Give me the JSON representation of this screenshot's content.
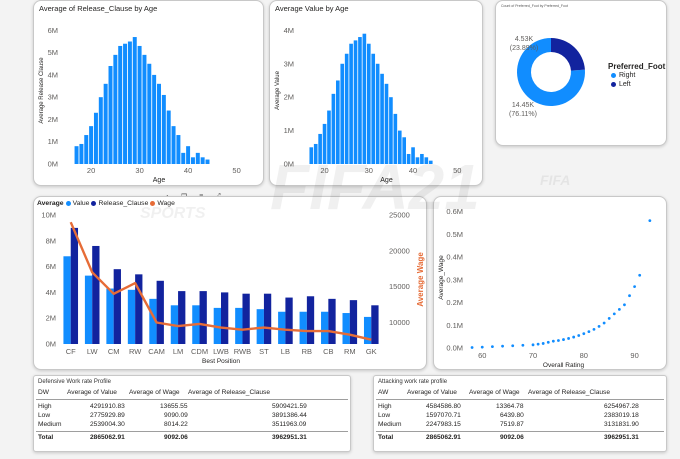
{
  "histogram_release": {
    "title": "Average of Release_Clause by Age",
    "ylabel": "Average Release Clause",
    "xlabel": "Age",
    "yticks": [
      "0M",
      "1M",
      "2M",
      "3M",
      "4M",
      "5M",
      "6M"
    ],
    "xticks": [
      "20",
      "30",
      "40",
      "50"
    ]
  },
  "histogram_value": {
    "title": "Average Value by Age",
    "ylabel": "Average Value",
    "xlabel": "Age",
    "yticks": [
      "0M",
      "1M",
      "2M",
      "3M",
      "4M"
    ],
    "xticks": [
      "20",
      "30",
      "40",
      "50"
    ]
  },
  "donut": {
    "title": "Count of Preferred_Foot by Preferred_Foot",
    "legend_title": "Preferred_Foot",
    "items": [
      {
        "label": "Right",
        "value": "14.45K",
        "pct": "(76.11%)",
        "share": 76.11,
        "color": "#118dff"
      },
      {
        "label": "Left",
        "value": "4.53K",
        "pct": "(23.89%)",
        "share": 23.89,
        "color": "#12239e"
      }
    ]
  },
  "combo": {
    "legend_prefix": "Average",
    "legend": [
      {
        "label": "Value",
        "color": "#118dff"
      },
      {
        "label": "Release_Clause",
        "color": "#12239e"
      },
      {
        "label": "Wage",
        "color": "#e66c37"
      }
    ],
    "xlabel": "Best Position",
    "y2label": "Average Wage",
    "yticks": [
      "0M",
      "2M",
      "4M",
      "6M",
      "8M",
      "10M"
    ],
    "y2ticks": [
      "10000",
      "15000",
      "20000",
      "25000"
    ]
  },
  "scatter": {
    "ylabel": "Average_Wage",
    "xlabel": "Overall Rating",
    "yticks": [
      "0.0M",
      "0.1M",
      "0.2M",
      "0.3M",
      "0.4M",
      "0.5M",
      "0.6M"
    ],
    "xticks": [
      "60",
      "70",
      "80",
      "90"
    ]
  },
  "chart_data": [
    {
      "type": "bar",
      "title": "Average of Release_Clause by Age",
      "xlabel": "Age",
      "ylabel": "Average Release Clause",
      "x": [
        17,
        18,
        19,
        20,
        21,
        22,
        23,
        24,
        25,
        26,
        27,
        28,
        29,
        30,
        31,
        32,
        33,
        34,
        35,
        36,
        37,
        38,
        39,
        40,
        41,
        42,
        43,
        44
      ],
      "values": [
        0.8,
        0.9,
        1.3,
        1.7,
        2.3,
        3.0,
        3.6,
        4.4,
        4.9,
        5.3,
        5.4,
        5.5,
        5.7,
        5.3,
        4.9,
        4.5,
        4.0,
        3.6,
        3.1,
        2.4,
        1.7,
        1.3,
        0.5,
        0.8,
        0.3,
        0.5,
        0.3,
        0.2
      ],
      "xlim": [
        14,
        54
      ],
      "ylim": [
        0,
        6.6
      ]
    },
    {
      "type": "bar",
      "title": "Average Value by Age",
      "xlabel": "Age",
      "ylabel": "Average Value",
      "x": [
        17,
        18,
        19,
        20,
        21,
        22,
        23,
        24,
        25,
        26,
        27,
        28,
        29,
        30,
        31,
        32,
        33,
        34,
        35,
        36,
        37,
        38,
        39,
        40,
        41,
        42,
        43,
        44
      ],
      "values": [
        0.5,
        0.6,
        0.9,
        1.2,
        1.6,
        2.1,
        2.5,
        3.0,
        3.3,
        3.6,
        3.7,
        3.8,
        3.9,
        3.6,
        3.3,
        3.0,
        2.7,
        2.4,
        2.0,
        1.5,
        1.0,
        0.8,
        0.3,
        0.5,
        0.2,
        0.3,
        0.2,
        0.1
      ],
      "xlim": [
        14,
        54
      ],
      "ylim": [
        0,
        4.4
      ]
    },
    {
      "type": "pie",
      "title": "Count of Preferred_Foot by Preferred_Foot",
      "categories": [
        "Right",
        "Left"
      ],
      "values": [
        14450,
        4530
      ]
    },
    {
      "type": "bar",
      "categories": [
        "CF",
        "LW",
        "CM",
        "RW",
        "CAM",
        "LM",
        "CDM",
        "LWB",
        "RWB",
        "ST",
        "LB",
        "RB",
        "CB",
        "RM",
        "GK"
      ],
      "series": [
        {
          "name": "Value",
          "values": [
            6.8,
            5.3,
            4.3,
            4.2,
            3.5,
            3.0,
            3.0,
            2.8,
            2.8,
            2.7,
            2.5,
            2.5,
            2.5,
            2.4,
            2.1
          ]
        },
        {
          "name": "Release_Clause",
          "values": [
            9.0,
            7.6,
            5.8,
            5.4,
            4.9,
            4.1,
            4.1,
            4.0,
            3.9,
            3.9,
            3.6,
            3.7,
            3.5,
            3.4,
            3.0
          ]
        },
        {
          "name": "Wage",
          "axis": "secondary",
          "values": [
            24000,
            17000,
            14000,
            15500,
            10000,
            9500,
            9800,
            9300,
            9000,
            9300,
            9000,
            8800,
            8800,
            8300,
            7600
          ]
        }
      ],
      "xlabel": "Best Position",
      "ylabel": "",
      "y2label": "Average Wage",
      "ylim": [
        0,
        10
      ],
      "y2lim": [
        7000,
        25000
      ]
    },
    {
      "type": "scatter",
      "xlabel": "Overall Rating",
      "ylabel": "Average_Wage",
      "x": [
        58,
        60,
        62,
        64,
        66,
        68,
        70,
        71,
        72,
        73,
        74,
        75,
        76,
        77,
        78,
        79,
        80,
        81,
        82,
        83,
        84,
        85,
        86,
        87,
        88,
        89,
        90,
        91,
        93
      ],
      "y": [
        0.002,
        0.004,
        0.006,
        0.008,
        0.01,
        0.012,
        0.014,
        0.017,
        0.02,
        0.025,
        0.03,
        0.033,
        0.037,
        0.042,
        0.048,
        0.055,
        0.063,
        0.072,
        0.082,
        0.095,
        0.11,
        0.13,
        0.15,
        0.17,
        0.19,
        0.23,
        0.27,
        0.32,
        0.56
      ],
      "xlim": [
        57,
        95
      ],
      "ylim": [
        0,
        0.62
      ]
    }
  ],
  "defensive": {
    "title": "Defensive Work rate Profile",
    "columns": [
      "DW",
      "Average of Value",
      "Average of Wage",
      "Average of Release_Clause"
    ],
    "rows": [
      [
        "High",
        "4291910.83",
        "13655.55",
        "5909421.59"
      ],
      [
        "Low",
        "2775929.89",
        "9090.09",
        "3891386.44"
      ],
      [
        "Medium",
        "2539004.30",
        "8014.22",
        "3511963.09"
      ]
    ],
    "total": [
      "Total",
      "2865062.91",
      "9092.06",
      "3962951.31"
    ]
  },
  "attacking": {
    "title": "Attacking work rate profile",
    "columns": [
      "AW",
      "Average of Value",
      "Average of Wage",
      "Average of Release_Clause"
    ],
    "rows": [
      [
        "High",
        "4584586.80",
        "13364.78",
        "6254967.28"
      ],
      [
        "Low",
        "1597070.71",
        "6439.80",
        "2383019.18"
      ],
      [
        "Medium",
        "2247983.15",
        "7519.87",
        "3131831.90"
      ]
    ],
    "total": [
      "Total",
      "2865062.91",
      "9092.06",
      "3962951.31"
    ]
  },
  "watermark": "FIFA21",
  "watermark_small": "FIFA",
  "watermark_sports": "SPORTS",
  "toolbar_icons": [
    "pin-icon",
    "copy-icon",
    "filter-icon",
    "focus-icon",
    "more-icon"
  ]
}
